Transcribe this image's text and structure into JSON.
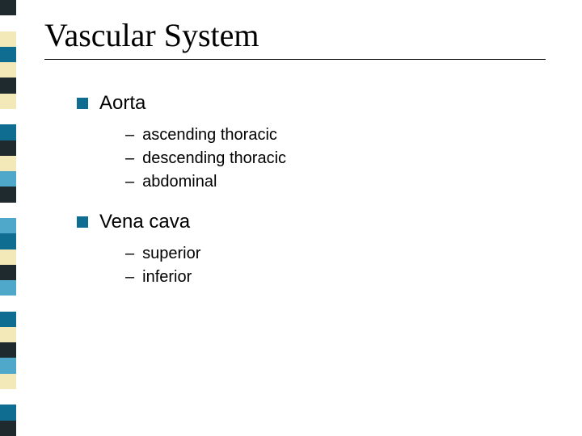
{
  "title": "Vascular System",
  "stripe_colors": [
    "#1f2a2f",
    "#ffffff",
    "#f2e8b8",
    "#0f6d91",
    "#f2e8b8",
    "#1f2a2f",
    "#f2e8b8",
    "#ffffff",
    "#0f6d91",
    "#1f2a2f",
    "#f2e8b8",
    "#4fa8c9",
    "#1f2a2f",
    "#ffffff",
    "#4fa8c9",
    "#0f6d91",
    "#f2e8b8",
    "#1f2a2f",
    "#4fa8c9",
    "#ffffff",
    "#0f6d91",
    "#f2e8b8",
    "#1f2a2f",
    "#4fa8c9",
    "#f2e8b8",
    "#ffffff",
    "#0f6d91",
    "#1f2a2f"
  ],
  "bullet_color": "#0f6d91",
  "text_color": "#000000",
  "title_fontsize": 40,
  "level1_fontsize": 24,
  "level2_fontsize": 20,
  "items": [
    {
      "label": "Aorta",
      "sub": [
        "ascending thoracic",
        "descending thoracic",
        "abdominal"
      ]
    },
    {
      "label": "Vena cava",
      "sub": [
        "superior",
        "inferior"
      ]
    }
  ]
}
